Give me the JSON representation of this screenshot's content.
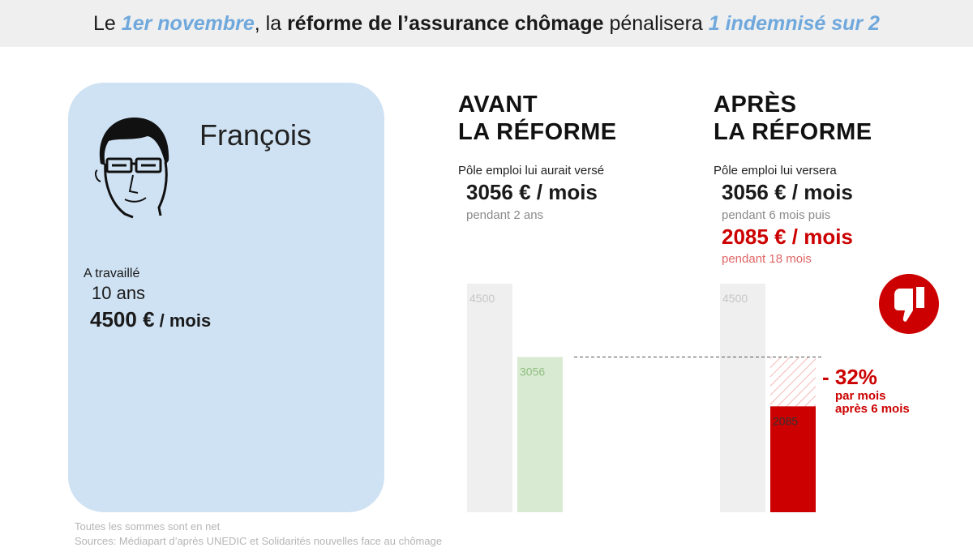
{
  "header": {
    "part1": "Le ",
    "date": "1er novembre",
    "part2": ", la ",
    "subject": "réforme de l’assurance chômage",
    "part3": " pénalisera ",
    "impact": "1 indemnisé sur 2"
  },
  "person": {
    "name": "François",
    "worked_label": "A travaillé",
    "worked_years": "10 ans",
    "salary_value": "4500 €",
    "salary_unit": " / mois"
  },
  "before": {
    "heading_line1": "AVANT",
    "heading_line2": "LA RÉFORME",
    "intro": "Pôle emploi lui aurait versé",
    "amount": "3056 € / mois",
    "duration": "pendant 2 ans"
  },
  "after": {
    "heading_line1": "APRÈS",
    "heading_line2": "LA RÉFORME",
    "intro": "Pôle emploi lui versera",
    "amount1": "3056 € / mois",
    "duration1": "pendant 6 mois puis",
    "amount2": "2085 € / mois",
    "duration2": "pendant 18 mois"
  },
  "drop": {
    "percent": "- 32%",
    "note_line1": "par mois",
    "note_line2": "après 6 mois"
  },
  "footer": {
    "note": "Toutes les sommes sont en net",
    "sources": "Sources: Médiapart d’après UNEDIC et Solidarités nouvelles face au chômage"
  },
  "chart_data": {
    "type": "bar",
    "ylim": [
      0,
      4500
    ],
    "groups": [
      {
        "name": "AVANT LA RÉFORME",
        "bars": [
          {
            "value": 4500,
            "label": "4500",
            "color": "#efefef"
          },
          {
            "value": 3056,
            "label": "3056",
            "color": "#d9ead3"
          }
        ]
      },
      {
        "name": "APRÈS LA RÉFORME",
        "bars": [
          {
            "value": 4500,
            "label": "4500",
            "color": "#efefef"
          },
          {
            "value": 2085,
            "label": "2085",
            "color": "#cc0000",
            "reference_value": 3056
          }
        ]
      }
    ]
  }
}
